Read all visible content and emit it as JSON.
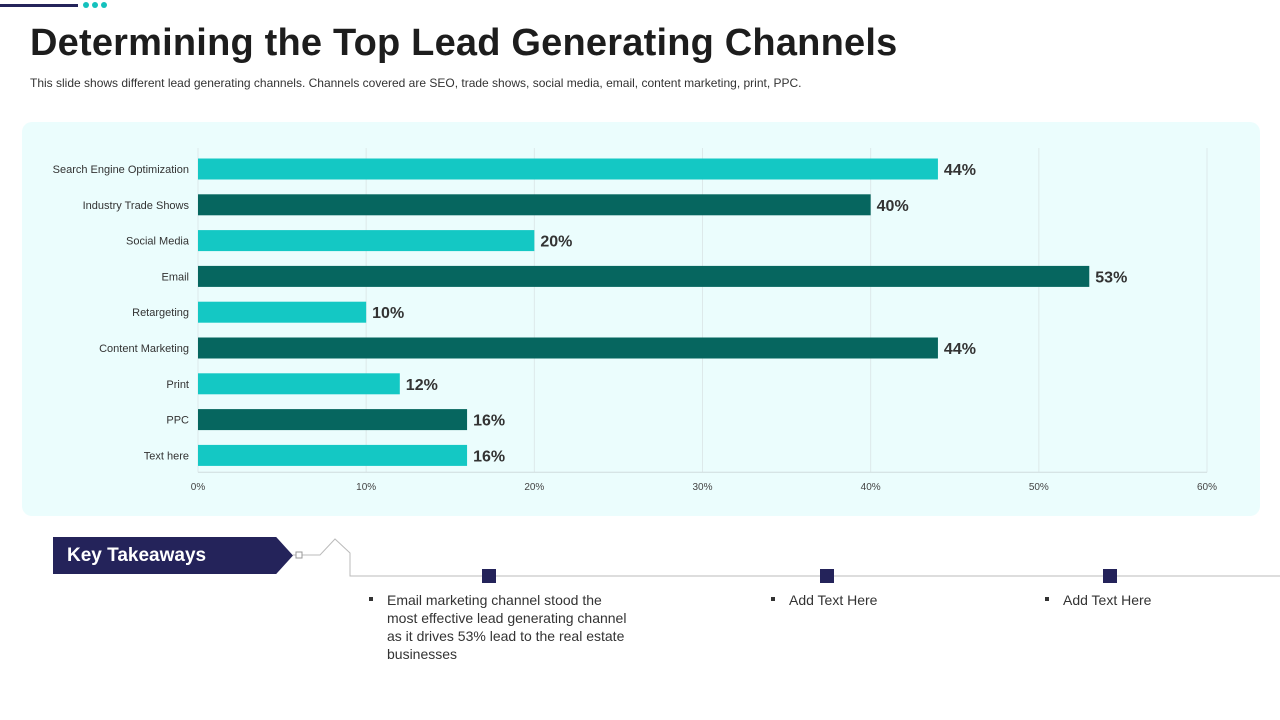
{
  "title": "Determining the Top Lead Generating Channels",
  "subtitle": "This slide shows different lead generating channels. Channels covered are SEO, trade shows, social media, email, content marketing, print, PPC.",
  "colors": {
    "accent_light": "#14c8c4",
    "accent_dark": "#06665f",
    "navy": "#24235a",
    "panel": "#ebfdfd"
  },
  "chart_data": {
    "type": "bar",
    "orientation": "horizontal",
    "categories": [
      "Search Engine Optimization",
      "Industry Trade Shows",
      "Social Media",
      "Email",
      "Retargeting",
      "Content Marketing",
      "Print",
      "PPC",
      "Text here"
    ],
    "values": [
      44,
      40,
      20,
      53,
      10,
      44,
      12,
      16,
      16
    ],
    "value_labels": [
      "44%",
      "40%",
      "20%",
      "53%",
      "10%",
      "44%",
      "12%",
      "16%",
      "16%"
    ],
    "x_ticks": [
      "0%",
      "10%",
      "20%",
      "30%",
      "40%",
      "50%",
      "60%"
    ],
    "xlim": [
      0,
      60
    ],
    "grid": true,
    "bar_colors": [
      "#14c8c4",
      "#06665f",
      "#14c8c4",
      "#06665f",
      "#14c8c4",
      "#06665f",
      "#14c8c4",
      "#06665f",
      "#14c8c4"
    ]
  },
  "key_takeaways": {
    "label": "Key Takeaways",
    "items": [
      "Email marketing channel stood the most effective lead generating channel as it drives 53% lead to the real estate businesses",
      "Add Text Here",
      "Add Text Here"
    ]
  }
}
